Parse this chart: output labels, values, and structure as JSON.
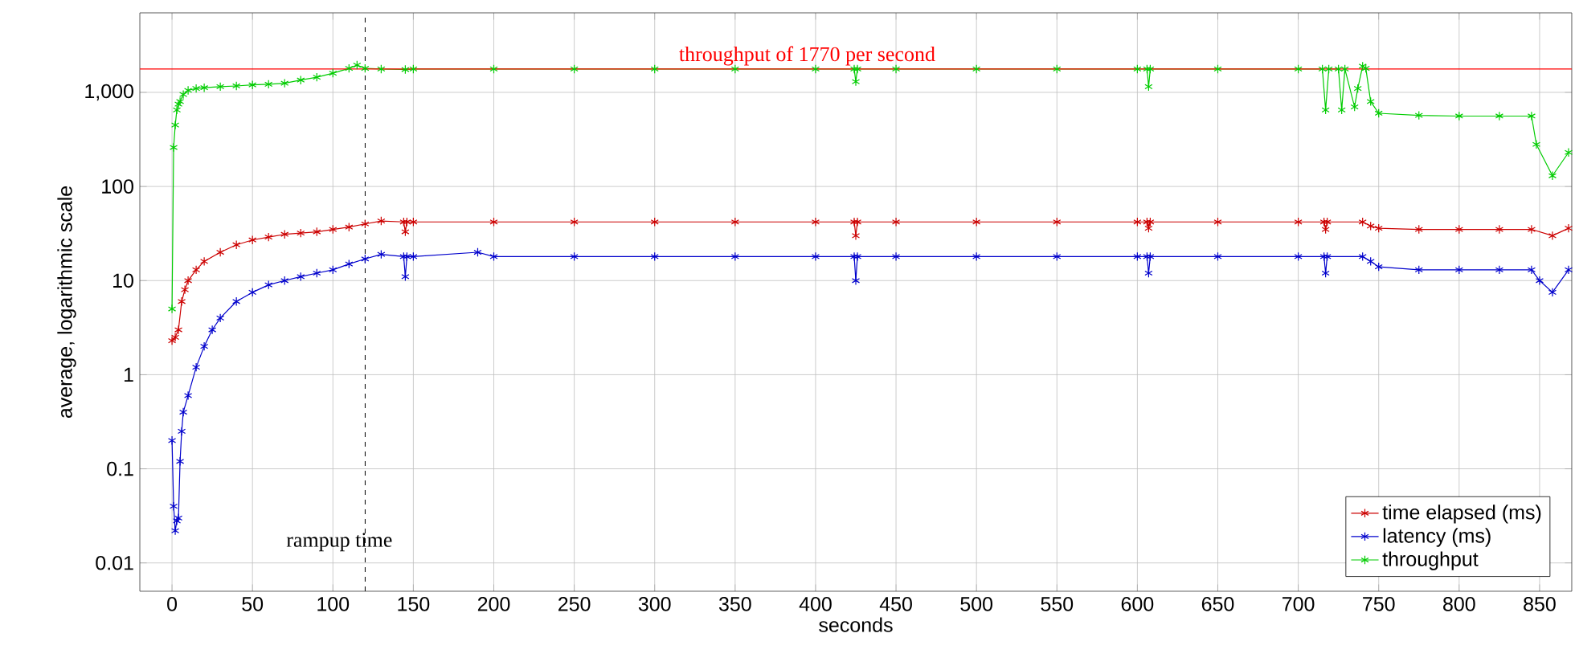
{
  "chart_data": {
    "type": "line",
    "xlabel": "seconds",
    "ylabel": "average, logarithmic scale",
    "xlim": [
      -20,
      870
    ],
    "xticks": [
      0,
      50,
      100,
      150,
      200,
      250,
      300,
      350,
      400,
      450,
      500,
      550,
      600,
      650,
      700,
      750,
      800,
      850
    ],
    "ylim": [
      0.005,
      7000
    ],
    "yticks": [
      0.01,
      0.1,
      1,
      10,
      100,
      {
        "value": 1000,
        "label": "1,000"
      }
    ],
    "log": "y",
    "grid": true,
    "legend": "bottom right",
    "marker": "cross",
    "line_style": "solid",
    "series": [
      {
        "name": "time elapsed (ms)",
        "color": "#cc0000",
        "x": [
          0,
          2,
          4,
          6,
          8,
          10,
          15,
          20,
          30,
          40,
          50,
          60,
          70,
          80,
          90,
          100,
          110,
          120,
          130,
          144,
          145,
          146,
          150,
          200,
          250,
          300,
          350,
          400,
          424,
          425,
          426,
          450,
          500,
          550,
          600,
          606,
          607,
          608,
          650,
          700,
          716,
          717,
          718,
          740,
          745,
          750,
          775,
          800,
          825,
          845,
          858,
          868
        ],
        "values": [
          2.3,
          2.5,
          3,
          6,
          8,
          10,
          13,
          16,
          20,
          24,
          27,
          29,
          31,
          32,
          33,
          35,
          37,
          40,
          43,
          42,
          33,
          42,
          42,
          42,
          42,
          42,
          42,
          42,
          42,
          30,
          42,
          42,
          42,
          42,
          42,
          42,
          36,
          42,
          42,
          42,
          42,
          35,
          42,
          42,
          38,
          36,
          35,
          35,
          35,
          35,
          30,
          36
        ]
      },
      {
        "name": "latency (ms)",
        "color": "#0000cc",
        "x": [
          0,
          1,
          2,
          3,
          4,
          5,
          6,
          7,
          10,
          15,
          20,
          25,
          30,
          40,
          50,
          60,
          70,
          80,
          90,
          100,
          110,
          120,
          130,
          144,
          145,
          146,
          150,
          190,
          200,
          250,
          300,
          350,
          400,
          424,
          425,
          426,
          450,
          500,
          550,
          600,
          606,
          607,
          608,
          650,
          700,
          716,
          717,
          718,
          740,
          745,
          750,
          775,
          800,
          825,
          845,
          850,
          858,
          868
        ],
        "values": [
          0.2,
          0.04,
          0.022,
          0.028,
          0.03,
          0.12,
          0.25,
          0.4,
          0.6,
          1.2,
          2,
          3,
          4,
          6,
          7.5,
          9,
          10,
          11,
          12,
          13,
          15,
          17,
          19,
          18,
          11,
          18,
          18,
          20,
          18,
          18,
          18,
          18,
          18,
          18,
          10,
          18,
          18,
          18,
          18,
          18,
          18,
          12,
          18,
          18,
          18,
          18,
          12,
          18,
          18,
          16,
          14,
          13,
          13,
          13,
          13,
          10,
          7.5,
          13
        ]
      },
      {
        "name": "throughput",
        "color": "#00cc00",
        "x": [
          0,
          1,
          2,
          3,
          4,
          5,
          7,
          10,
          15,
          20,
          30,
          40,
          50,
          60,
          70,
          80,
          90,
          100,
          110,
          115,
          120,
          130,
          145,
          150,
          200,
          250,
          300,
          350,
          400,
          424,
          425,
          426,
          450,
          500,
          550,
          600,
          606,
          607,
          608,
          650,
          700,
          715,
          717,
          719,
          725,
          727,
          729,
          735,
          737,
          740,
          742,
          745,
          750,
          775,
          800,
          825,
          845,
          848,
          858,
          868
        ],
        "values": [
          5,
          260,
          450,
          650,
          750,
          800,
          950,
          1050,
          1100,
          1120,
          1150,
          1170,
          1200,
          1220,
          1250,
          1350,
          1450,
          1600,
          1800,
          1950,
          1800,
          1770,
          1750,
          1770,
          1770,
          1770,
          1770,
          1770,
          1770,
          1770,
          1300,
          1770,
          1770,
          1770,
          1770,
          1770,
          1770,
          1150,
          1770,
          1770,
          1770,
          1770,
          650,
          1770,
          1770,
          650,
          1770,
          700,
          1100,
          1900,
          1800,
          800,
          600,
          570,
          560,
          560,
          560,
          280,
          130,
          230
        ]
      }
    ],
    "ref_lines": [
      {
        "axis": "y",
        "value": 1770,
        "label": "throughput of 1770 per second",
        "color": "#ff0000",
        "line_style": "solid"
      },
      {
        "axis": "x",
        "value": 120,
        "label": "rampup time",
        "color": "#000000",
        "line_style": "dashed"
      }
    ]
  }
}
